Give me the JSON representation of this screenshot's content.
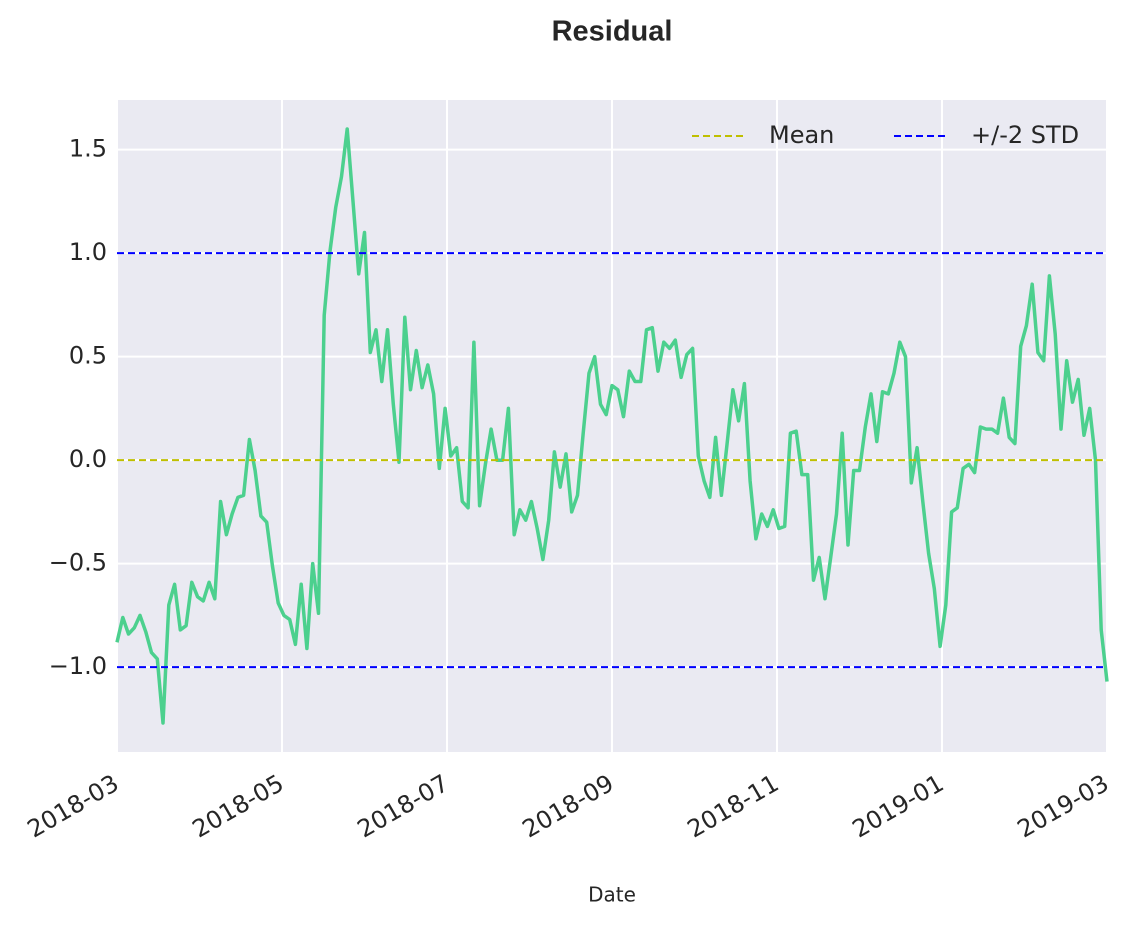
{
  "chart_data": {
    "type": "line",
    "title": "Residual",
    "xlabel": "Date",
    "color": "#4cd08e",
    "values": [
      -0.88,
      -0.76,
      -0.84,
      -0.81,
      -0.75,
      -0.83,
      -0.93,
      -0.96,
      -1.27,
      -0.7,
      -0.6,
      -0.82,
      -0.8,
      -0.59,
      -0.66,
      -0.68,
      -0.59,
      -0.67,
      -0.2,
      -0.36,
      -0.26,
      -0.18,
      -0.17,
      0.1,
      -0.05,
      -0.27,
      -0.3,
      -0.51,
      -0.69,
      -0.75,
      -0.77,
      -0.89,
      -0.6,
      -0.91,
      -0.5,
      -0.74,
      0.7,
      1.01,
      1.22,
      1.37,
      1.6,
      1.25,
      0.9,
      1.1,
      0.52,
      0.63,
      0.38,
      0.63,
      0.27,
      -0.01,
      0.69,
      0.34,
      0.53,
      0.35,
      0.46,
      0.32,
      -0.04,
      0.25,
      0.02,
      0.06,
      -0.2,
      -0.23,
      0.57,
      -0.22,
      -0.02,
      0.15,
      0.0,
      0.0,
      0.25,
      -0.36,
      -0.24,
      -0.29,
      -0.2,
      -0.33,
      -0.48,
      -0.29,
      0.04,
      -0.13,
      0.03,
      -0.25,
      -0.17,
      0.13,
      0.42,
      0.5,
      0.27,
      0.22,
      0.36,
      0.34,
      0.21,
      0.43,
      0.38,
      0.38,
      0.63,
      0.64,
      0.43,
      0.57,
      0.54,
      0.58,
      0.4,
      0.51,
      0.54,
      0.02,
      -0.1,
      -0.18,
      0.11,
      -0.17,
      0.08,
      0.34,
      0.19,
      0.37,
      -0.1,
      -0.38,
      -0.26,
      -0.32,
      -0.24,
      -0.33,
      -0.32,
      0.13,
      0.14,
      -0.07,
      -0.07,
      -0.58,
      -0.47,
      -0.67,
      -0.47,
      -0.26,
      0.13,
      -0.41,
      -0.05,
      -0.05,
      0.16,
      0.32,
      0.09,
      0.33,
      0.32,
      0.42,
      0.57,
      0.5,
      -0.11,
      0.06,
      -0.2,
      -0.45,
      -0.62,
      -0.9,
      -0.7,
      -0.25,
      -0.23,
      -0.04,
      -0.02,
      -0.06,
      0.16,
      0.15,
      0.15,
      0.13,
      0.3,
      0.11,
      0.08,
      0.55,
      0.65,
      0.85,
      0.52,
      0.48,
      0.89,
      0.61,
      0.15,
      0.48,
      0.28,
      0.39,
      0.12,
      0.25,
      0.0,
      -0.82,
      -1.07
    ],
    "reference_lines": [
      {
        "name": "Mean",
        "color": "#bfbf00",
        "values": [
          0.0
        ]
      },
      {
        "name": "+/-2 STD",
        "color": "#0000ff",
        "values": [
          1.0,
          -1.0
        ]
      }
    ],
    "xlim": [
      "2018-03",
      "2019-03"
    ],
    "xticks": [
      "2018-03",
      "2018-05",
      "2018-07",
      "2018-09",
      "2018-11",
      "2019-01",
      "2019-03"
    ],
    "ylim": [
      -1.41,
      1.74
    ],
    "yticks": [
      1.5,
      {
        "value": 1.0,
        "label": "1.0"
      },
      0.5,
      {
        "value": 0.0,
        "label": "0.0"
      },
      {
        "value": -0.5,
        "label": "−0.5"
      },
      {
        "value": -1.0,
        "label": "−1.0"
      }
    ],
    "grid": true,
    "legend": "upper right"
  }
}
